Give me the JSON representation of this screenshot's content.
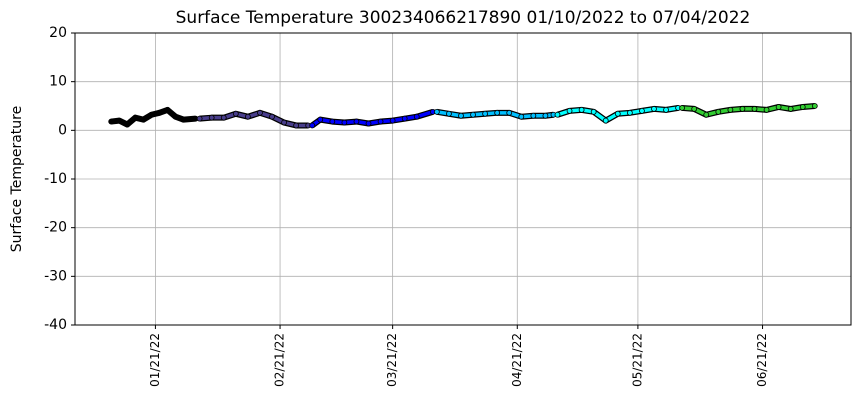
{
  "chart_data": {
    "type": "line",
    "title": "Surface Temperature 300234066217890  01/10/2022 to 07/04/2022",
    "y_label": "Surface Temperature",
    "xlim": [
      "01/01/22",
      "07/13/22"
    ],
    "xticks": [
      "01/21/22",
      "02/21/22",
      "03/21/22",
      "04/21/22",
      "05/21/22",
      "06/21/22"
    ],
    "ylim": [
      -40,
      20
    ],
    "yticks": [
      -40,
      -30,
      -20,
      -10,
      0,
      10,
      20
    ],
    "grid": true,
    "series": [
      {
        "color": "#000000",
        "x": [
          "01/10/22",
          "01/12/22",
          "01/14/22",
          "01/16/22",
          "01/18/22",
          "01/20/22",
          "01/22/22",
          "01/24/22",
          "01/26/22",
          "01/28/22",
          "01/31/22"
        ],
        "values": [
          1.8,
          2.0,
          1.2,
          2.6,
          2.2,
          3.2,
          3.6,
          4.2,
          2.8,
          2.2,
          2.4
        ]
      },
      {
        "color": "#483d8b",
        "x": [
          "02/01/22",
          "02/04/22",
          "02/07/22",
          "02/10/22",
          "02/13/22",
          "02/16/22",
          "02/19/22",
          "02/22/22",
          "02/25/22",
          "02/28/22"
        ],
        "values": [
          2.4,
          2.6,
          2.6,
          3.4,
          2.8,
          3.6,
          2.8,
          1.6,
          1.0,
          1.0
        ]
      },
      {
        "color": "#0000ff",
        "x": [
          "03/01/22",
          "03/03/22",
          "03/06/22",
          "03/09/22",
          "03/12/22",
          "03/15/22",
          "03/18/22",
          "03/21/22",
          "03/24/22",
          "03/27/22",
          "03/31/22"
        ],
        "values": [
          1.0,
          2.2,
          1.8,
          1.6,
          1.8,
          1.4,
          1.8,
          2.0,
          2.4,
          2.8,
          3.8
        ]
      },
      {
        "color": "#00bfff",
        "x": [
          "04/01/22",
          "04/04/22",
          "04/07/22",
          "04/10/22",
          "04/13/22",
          "04/16/22",
          "04/19/22",
          "04/22/22",
          "04/25/22",
          "04/28/22",
          "04/30/22"
        ],
        "values": [
          3.8,
          3.4,
          3.0,
          3.2,
          3.4,
          3.6,
          3.6,
          2.8,
          3.0,
          3.0,
          3.2
        ]
      },
      {
        "color": "#00ffff",
        "x": [
          "05/01/22",
          "05/04/22",
          "05/07/22",
          "05/10/22",
          "05/13/22",
          "05/16/22",
          "05/19/22",
          "05/22/22",
          "05/25/22",
          "05/28/22",
          "05/31/22"
        ],
        "values": [
          3.2,
          4.0,
          4.2,
          3.8,
          2.0,
          3.4,
          3.6,
          4.0,
          4.4,
          4.2,
          4.6
        ]
      },
      {
        "color": "#32cd32",
        "x": [
          "06/01/22",
          "06/04/22",
          "06/07/22",
          "06/10/22",
          "06/13/22",
          "06/16/22",
          "06/19/22",
          "06/22/22",
          "06/25/22",
          "06/28/22",
          "07/01/22",
          "07/04/22"
        ],
        "values": [
          4.6,
          4.4,
          3.2,
          3.8,
          4.2,
          4.4,
          4.4,
          4.2,
          4.8,
          4.4,
          4.8,
          5.0
        ]
      }
    ]
  }
}
